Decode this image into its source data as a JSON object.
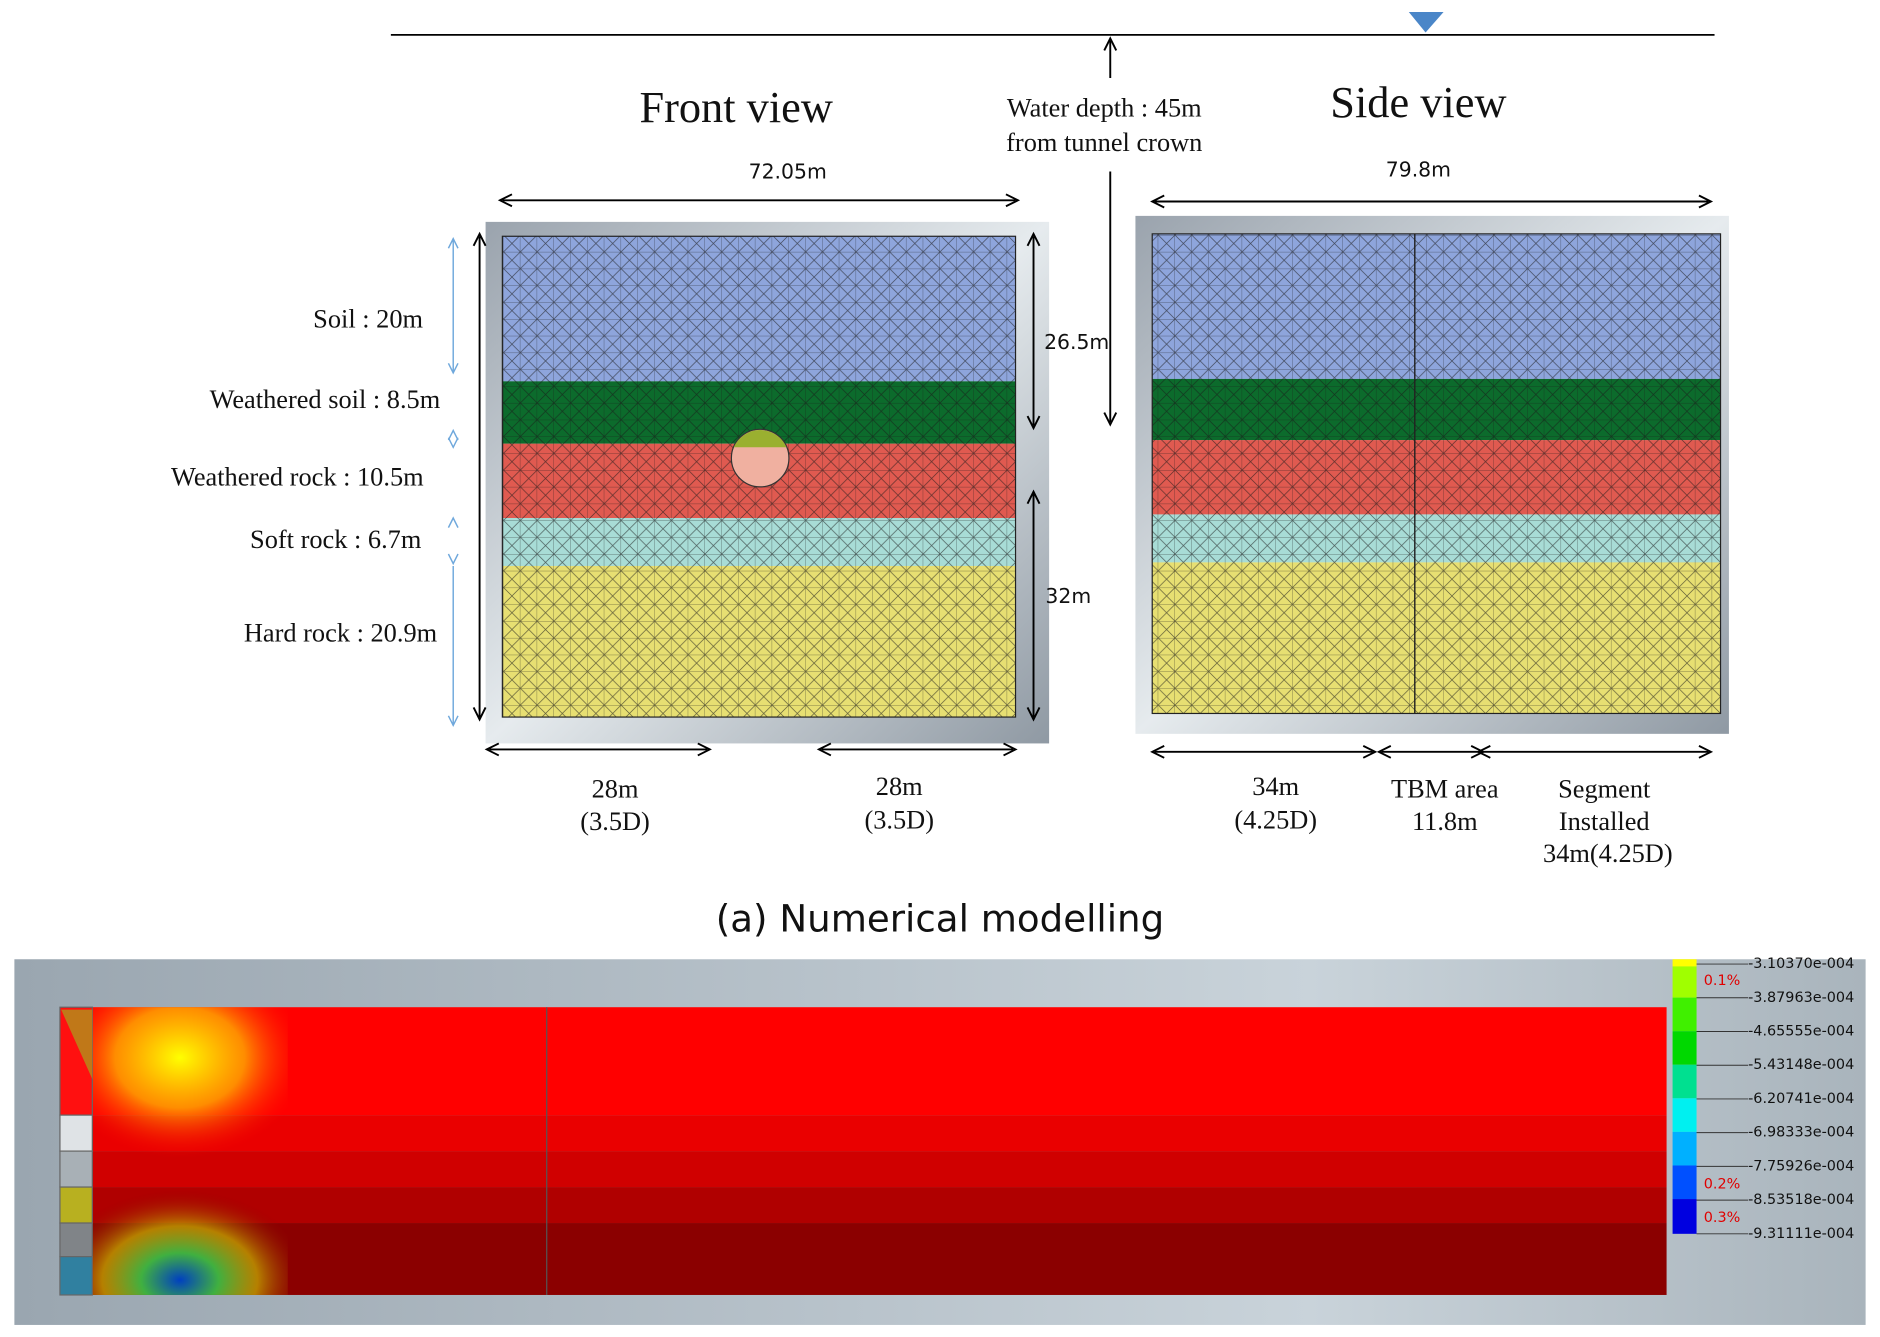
{
  "water_depth": {
    "line1": "Water depth : 45m",
    "line2": "from tunnel crown"
  },
  "front_view": {
    "title": "Front view",
    "width": "72.05m",
    "upper_height": "26.5m",
    "lower_height": "32m",
    "layers": [
      "Soil : 20m",
      "Weathered soil : 8.5m",
      "Weathered rock : 10.5m",
      "Soft rock : 6.7m",
      "Hard rock : 20.9m"
    ],
    "left_offset": {
      "length": "28m",
      "diameters": "(3.5D)"
    },
    "right_offset": {
      "length": "28m",
      "diameters": "(3.5D)"
    }
  },
  "side_view": {
    "title": "Side view",
    "width": "79.8m",
    "front_zone": {
      "length": "34m",
      "diameters": "(4.25D)"
    },
    "tbm_zone": {
      "label": "TBM area",
      "length": "11.8m"
    },
    "segment_zone": {
      "line1": "Segment",
      "line2": "Installed",
      "length": "34m(4.25D)"
    }
  },
  "caption_a": "(a) Numerical modelling",
  "contour_legend": {
    "labels": [
      "-3.10370e-004",
      "-3.87963e-004",
      "-4.65555e-004",
      "-5.43148e-004",
      "-6.20741e-004",
      "-6.98333e-004",
      "-7.75926e-004",
      "-8.53518e-004",
      "-9.31111e-004"
    ],
    "percent_labels": [
      "0.1%",
      "0.2%",
      "0.3%"
    ]
  }
}
